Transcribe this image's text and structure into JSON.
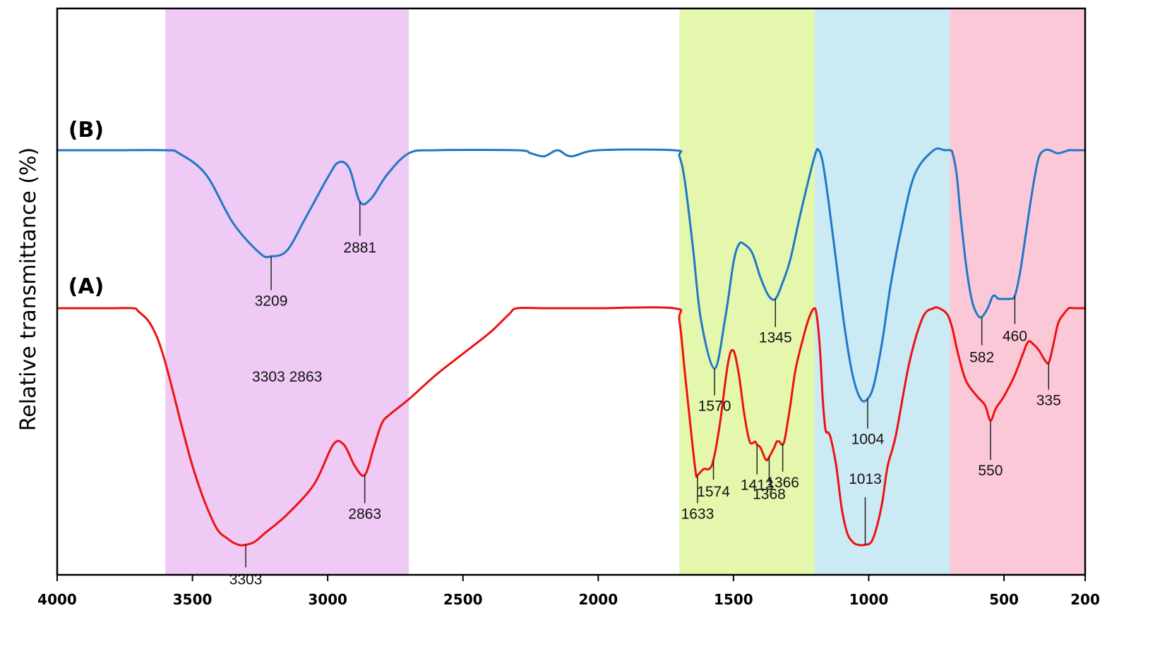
{
  "chart_data": {
    "type": "line",
    "title": "",
    "xlabel": "",
    "ylabel": "Relative transmittance (%)",
    "xlim": [
      4000,
      200
    ],
    "x_reversed": true,
    "xticks": [
      4000,
      3500,
      3000,
      2500,
      2000,
      1500,
      1000,
      500,
      200
    ],
    "grid": false,
    "regions": [
      {
        "from": 3600,
        "to": 2700,
        "color": "#eecaf5"
      },
      {
        "from": 1700,
        "to": 1200,
        "color": "#e4f7ac"
      },
      {
        "from": 1200,
        "to": 700,
        "color": "#cbeaf3"
      },
      {
        "from": 700,
        "to": 200,
        "color": "#fbc8d8"
      }
    ],
    "series": [
      {
        "name": "(B)",
        "color": "#1f78c8",
        "x": [
          4000,
          3800,
          3600,
          3550,
          3450,
          3350,
          3250,
          3209,
          3150,
          3080,
          3000,
          2960,
          2920,
          2881,
          2840,
          2780,
          2700,
          2600,
          2300,
          2250,
          2200,
          2150,
          2100,
          2000,
          1720,
          1700,
          1680,
          1650,
          1620,
          1570,
          1530,
          1500,
          1480,
          1460,
          1430,
          1400,
          1370,
          1345,
          1320,
          1290,
          1250,
          1200,
          1185,
          1170,
          1150,
          1120,
          1090,
          1060,
          1030,
          1004,
          980,
          950,
          920,
          880,
          830,
          760,
          720,
          700,
          690,
          675,
          660,
          640,
          620,
          600,
          582,
          560,
          540,
          520,
          500,
          480,
          460,
          440,
          420,
          400,
          385,
          370,
          350,
          330,
          300,
          260,
          240,
          200
        ],
        "y": [
          0,
          0,
          0,
          -1,
          -8,
          -24,
          -34,
          -35,
          -33,
          -22,
          -9,
          -4,
          -6,
          -17,
          -16,
          -8,
          -1,
          0,
          0,
          -1,
          -2,
          0,
          -2,
          0,
          0,
          -2,
          -10,
          -32,
          -56,
          -72,
          -55,
          -37,
          -31,
          -31,
          -34,
          -42,
          -48,
          -49,
          -44,
          -36,
          -20,
          -2,
          0,
          -4,
          -16,
          -37,
          -58,
          -74,
          -82,
          -82,
          -77,
          -63,
          -45,
          -26,
          -8,
          0,
          0,
          0,
          -1,
          -8,
          -22,
          -38,
          -49,
          -54,
          -55,
          -52,
          -48,
          -49,
          -49,
          -49,
          -48,
          -40,
          -28,
          -16,
          -8,
          -2,
          0,
          0,
          -1,
          0,
          0,
          0
        ]
      },
      {
        "name": "(A)",
        "color": "#ee1111",
        "x": [
          4000,
          3800,
          3720,
          3700,
          3650,
          3600,
          3500,
          3420,
          3370,
          3330,
          3303,
          3270,
          3230,
          3150,
          3050,
          2980,
          2940,
          2900,
          2863,
          2830,
          2800,
          2770,
          2700,
          2600,
          2500,
          2400,
          2330,
          2300,
          2200,
          2100,
          2000,
          1720,
          1700,
          1680,
          1660,
          1640,
          1633,
          1610,
          1590,
          1574,
          1550,
          1520,
          1500,
          1480,
          1460,
          1440,
          1420,
          1413,
          1400,
          1380,
          1368,
          1350,
          1340,
          1330,
          1320,
          1310,
          1290,
          1270,
          1240,
          1220,
          1200,
          1190,
          1180,
          1170,
          1160,
          1150,
          1140,
          1120,
          1100,
          1080,
          1060,
          1040,
          1013,
          990,
          970,
          950,
          930,
          900,
          850,
          800,
          760,
          740,
          710,
          690,
          670,
          640,
          600,
          570,
          550,
          530,
          500,
          460,
          430,
          410,
          390,
          370,
          350,
          335,
          320,
          300,
          280,
          260,
          240,
          200
        ],
        "y": [
          0,
          0,
          0,
          -1,
          -6,
          -18,
          -52,
          -71,
          -76,
          -78,
          -78,
          -77,
          -74,
          -68,
          -58,
          -45,
          -45,
          -52,
          -55,
          -46,
          -38,
          -35,
          -30,
          -22,
          -15,
          -8,
          -2,
          0,
          0,
          0,
          0,
          0,
          -4,
          -21,
          -38,
          -54,
          -55,
          -53,
          -53,
          -50,
          -38,
          -18,
          -14,
          -22,
          -35,
          -44,
          -44,
          -45,
          -46,
          -50,
          -49,
          -46,
          -44,
          -44,
          -45,
          -43,
          -32,
          -20,
          -9,
          -3,
          0,
          -4,
          -14,
          -30,
          -40,
          -41,
          -43,
          -52,
          -66,
          -74,
          -77,
          -78,
          -78,
          -77,
          -72,
          -64,
          -52,
          -42,
          -18,
          -3,
          0,
          0,
          -2,
          -7,
          -15,
          -24,
          -29,
          -32,
          -37,
          -33,
          -29,
          -22,
          -15,
          -11,
          -12,
          -14,
          -17,
          -18,
          -13,
          -5,
          -2,
          0,
          0,
          0
        ]
      }
    ],
    "annotations": [
      {
        "text": "3209",
        "x": 3209,
        "series": 0
      },
      {
        "text": "2881",
        "x": 2881,
        "series": 0
      },
      {
        "text": "1570",
        "x": 1570,
        "series": 0
      },
      {
        "text": "1345",
        "x": 1345,
        "series": 0
      },
      {
        "text": "1004",
        "x": 1004,
        "series": 0
      },
      {
        "text": "582",
        "x": 582,
        "series": 0
      },
      {
        "text": "460",
        "x": 460,
        "series": 0
      },
      {
        "text": "3303",
        "x": 3303,
        "series": 1
      },
      {
        "text": "2863",
        "x": 2863,
        "series": 1
      },
      {
        "text": "1633",
        "x": 1633,
        "series": 1
      },
      {
        "text": "1574",
        "x": 1574,
        "series": 1
      },
      {
        "text": "1413",
        "x": 1413,
        "series": 1
      },
      {
        "text": "1368",
        "x": 1368,
        "series": 1
      },
      {
        "text": "1366",
        "x": 1318,
        "series": 1
      },
      {
        "text": "1013",
        "x": 1013,
        "series": 1
      },
      {
        "text": "550",
        "x": 550,
        "series": 1
      },
      {
        "text": "335",
        "x": 335,
        "series": 1
      },
      {
        "text": "3303 2863",
        "x": 3150,
        "series": 1,
        "floating": true
      }
    ]
  }
}
